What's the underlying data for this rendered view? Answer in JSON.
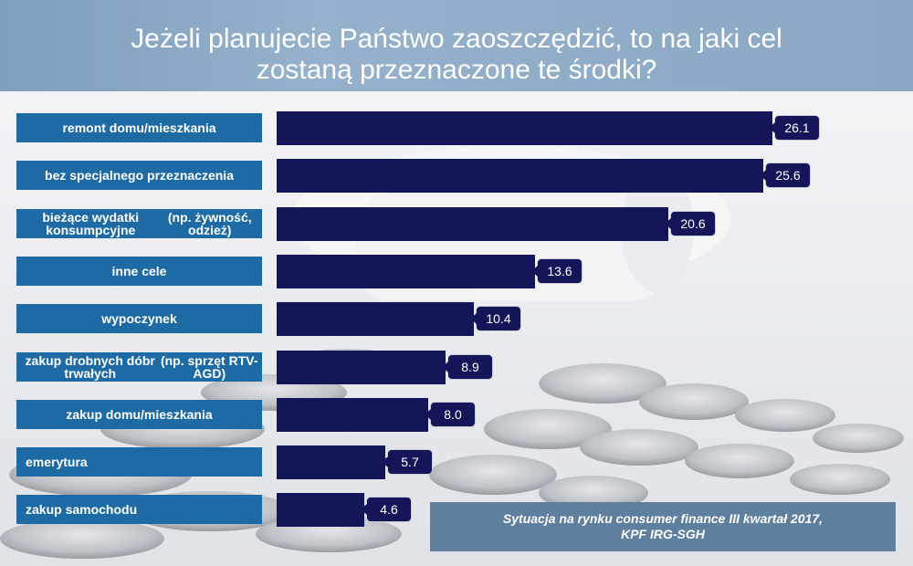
{
  "title": "Jeżeli planujecie Państwo zaoszczędzić, to na jaki cel\nzostaną przeznaczone te środki?",
  "source_line1": "Sytuacja na rynku consumer finance III kwartał 2017,",
  "source_line2": "KPF IRG-SGH",
  "colors": {
    "bar": "#15165a",
    "label_bg": "#1d6aa5",
    "title_band": "#8aa7c3"
  },
  "chart_data": {
    "type": "bar",
    "orientation": "horizontal",
    "title": "Jeżeli planujecie Państwo zaoszczędzić, to na jaki cel zostaną przeznaczone te środki?",
    "categories": [
      "remont domu/mieszkania",
      "bez specjalnego przeznaczenia",
      "bieżące wydatki konsumpcyjne (np. żywność, odzież)",
      "inne cele",
      "wypoczynek",
      "zakup drobnych dóbr trwałych (np. sprzęt RTV-AGD)",
      "zakup domu/mieszkania",
      "emerytura",
      "zakup samochodu"
    ],
    "category_lines": [
      [
        "remont domu/mieszkania"
      ],
      [
        "bez specjalnego przeznaczenia"
      ],
      [
        "bieżące wydatki konsumpcyjne",
        "(np. żywność, odzież)"
      ],
      [
        "inne cele"
      ],
      [
        "wypoczynek"
      ],
      [
        "zakup drobnych dóbr trwałych",
        "(np. sprzęt RTV-AGD)"
      ],
      [
        "zakup domu/mieszkania"
      ],
      [
        "emerytura"
      ],
      [
        "zakup samochodu"
      ]
    ],
    "values": [
      26.1,
      25.6,
      20.6,
      13.6,
      10.4,
      8.9,
      8.0,
      5.7,
      4.6
    ],
    "value_labels": [
      "26.1",
      "25.6",
      "20.6",
      "13.6",
      "10.4",
      "8.9",
      "8.0",
      "5.7",
      "4.6"
    ],
    "xlim": [
      0,
      26.1
    ],
    "grid": false,
    "legend": "none"
  }
}
